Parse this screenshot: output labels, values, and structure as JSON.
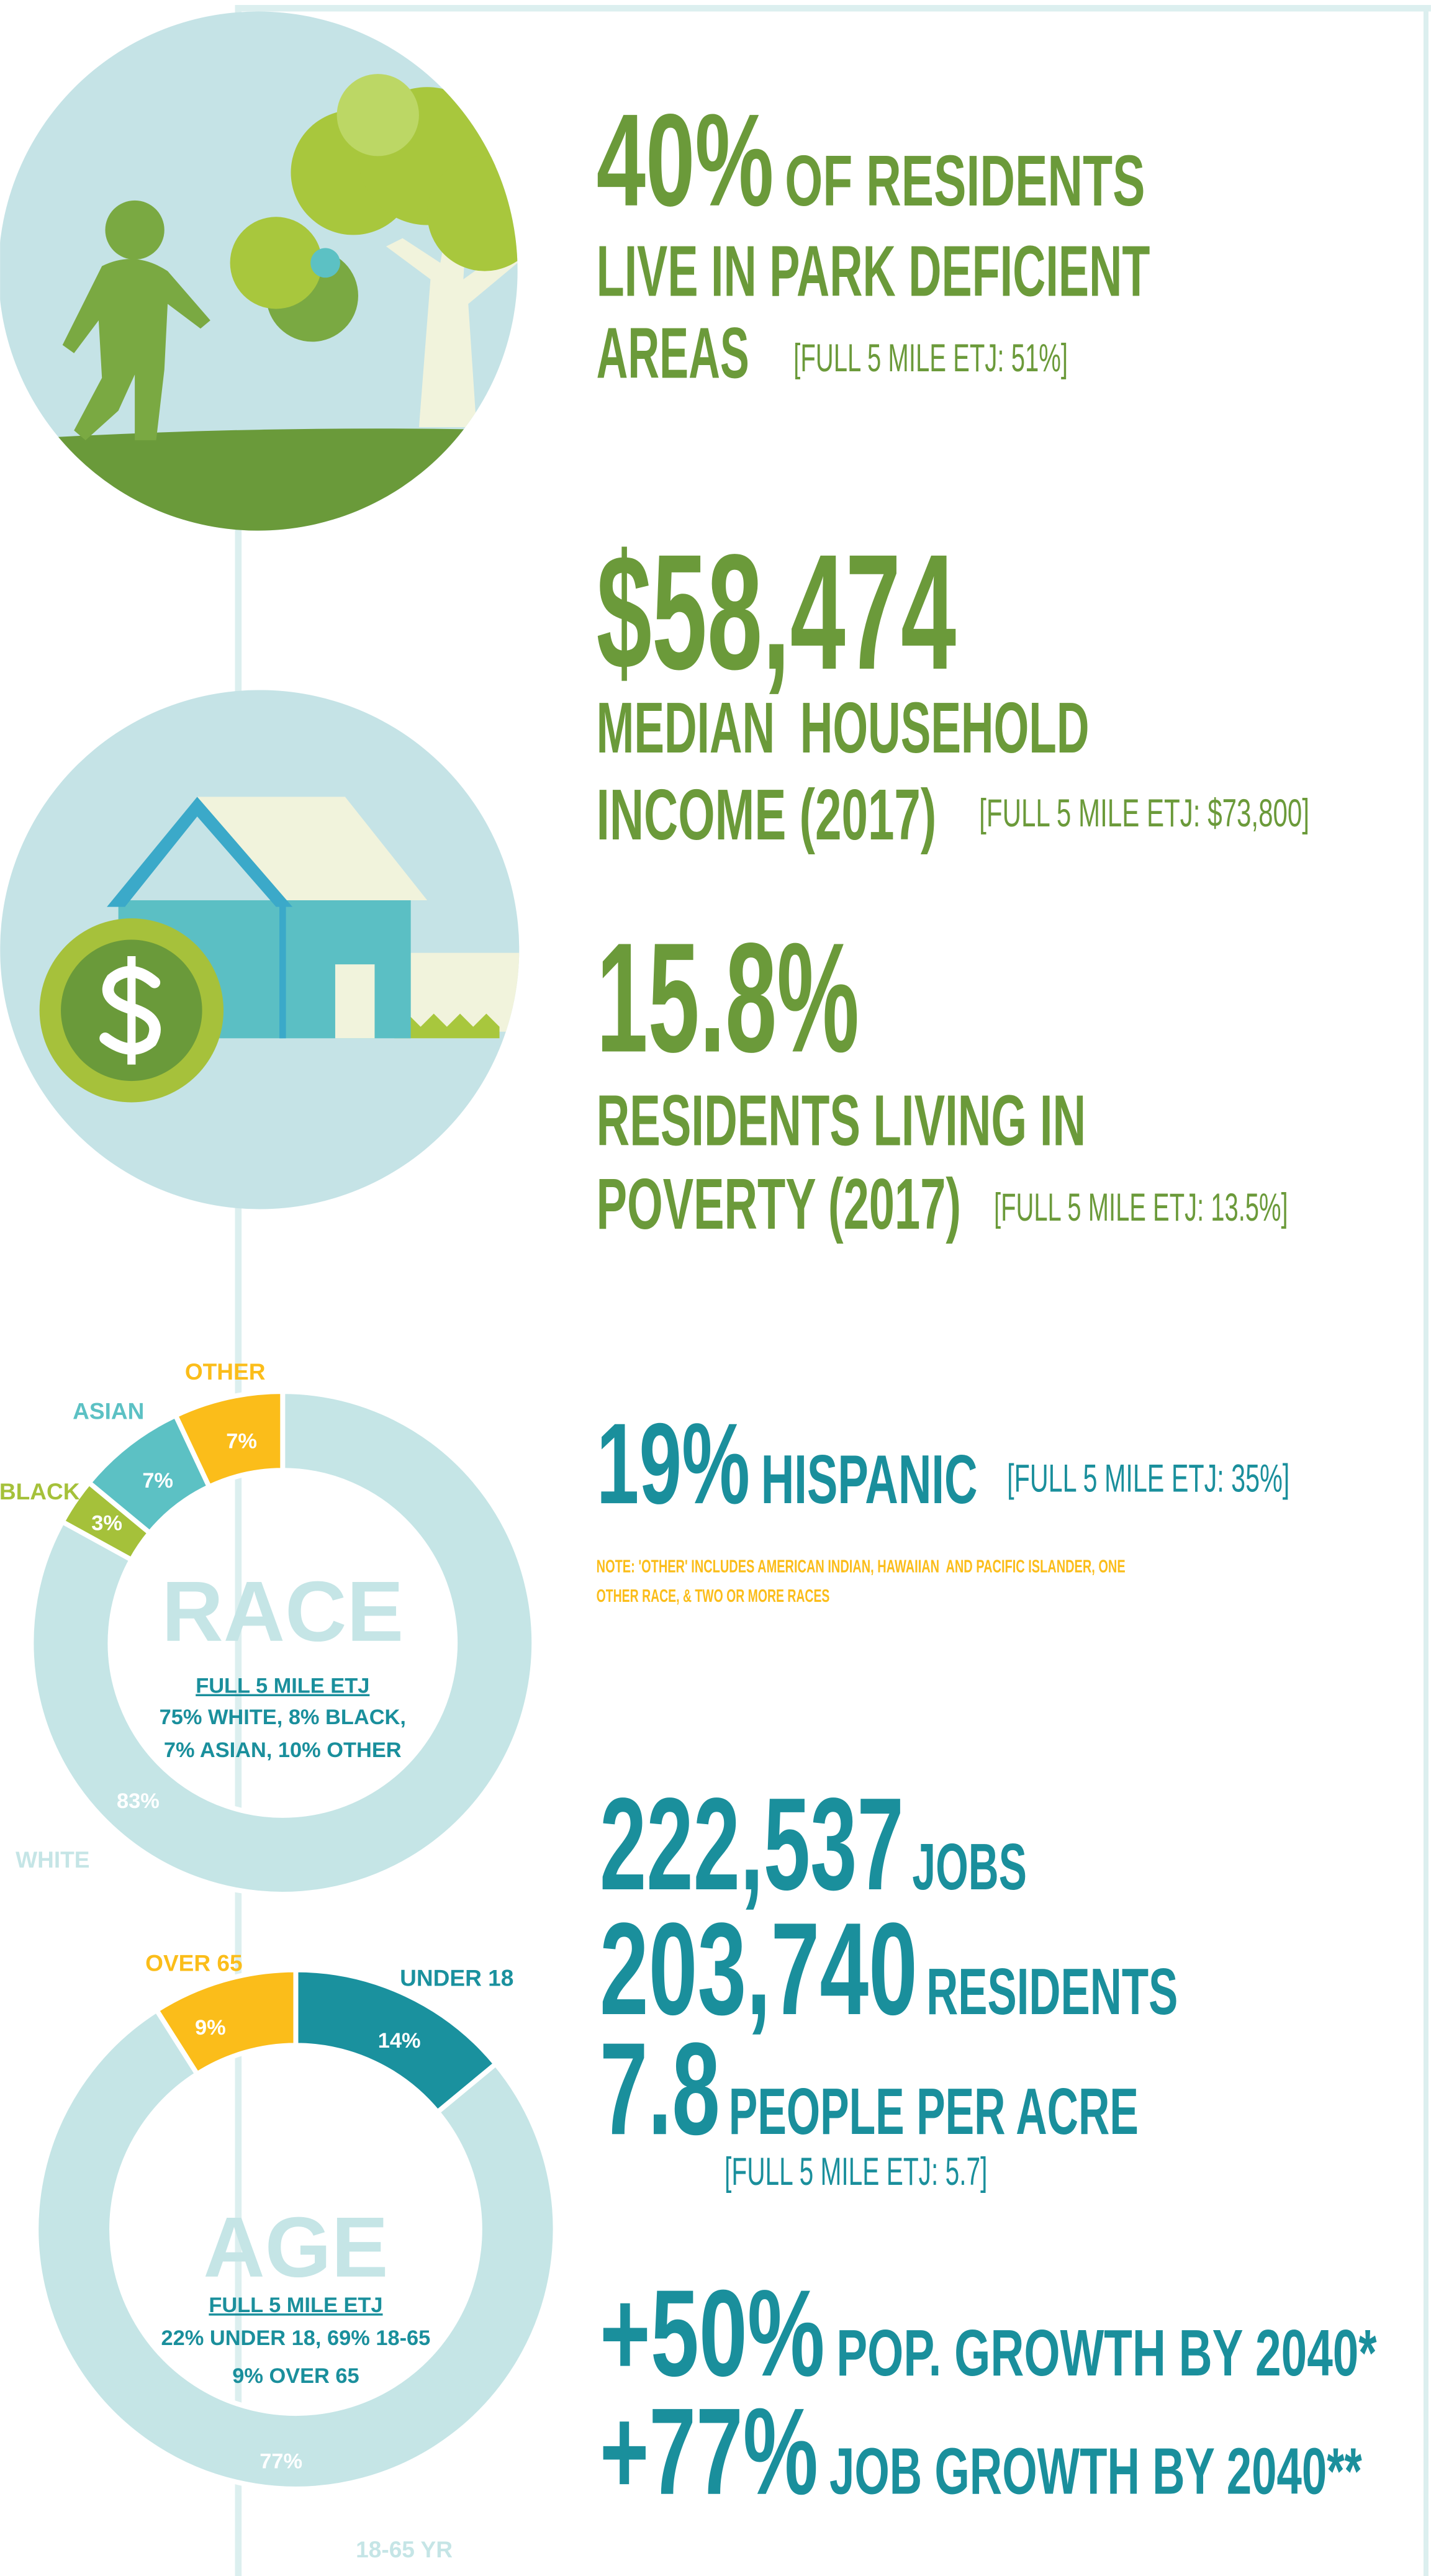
{
  "parks": {
    "headline": "40%",
    "headline_rest": "OF RESIDENTS",
    "line2": "LIVE IN PARK DEFICIENT",
    "line3": "AREAS",
    "etj": "[FULL 5 MILE ETJ: 51%]"
  },
  "income": {
    "headline": "$58,474",
    "line2": "MEDIAN  HOUSEHOLD",
    "line3": "INCOME (2017)",
    "etj": "[FULL 5 MILE ETJ: $73,800]"
  },
  "poverty": {
    "headline": "15.8%",
    "line2": "RESIDENTS LIVING IN",
    "line3": "POVERTY (2017)",
    "etj": "[FULL 5 MILE ETJ: 13.5%]"
  },
  "hispanic": {
    "headline": "19%",
    "headline_rest": "HISPANIC",
    "etj": "[FULL 5 MILE ETJ: 35%]",
    "note": [
      "NOTE: 'OTHER' INCLUDES AMERICAN INDIAN, HAWAIIAN  AND PACIFIC ISLANDER, ONE",
      "OTHER RACE, & TWO OR MORE RACES"
    ]
  },
  "density": {
    "rows": [
      {
        "value": "222,537",
        "label": "JOBS"
      },
      {
        "value": "203,740",
        "label": "RESIDENTS"
      },
      {
        "value": "7.8",
        "label": "PEOPLE PER ACRE"
      }
    ],
    "etj": "[FULL 5 MILE ETJ: 5.7]"
  },
  "growth": [
    {
      "value": "+50%",
      "label": "POP. GROWTH BY 2040*"
    },
    {
      "value": "+77%",
      "label": "JOB GROWTH BY 2040**"
    }
  ],
  "chart_data": [
    {
      "type": "donut",
      "title": "RACE",
      "subtitle": "FULL 5 MILE ETJ",
      "annotation": [
        "75% WHITE, 8% BLACK,",
        "7% ASIAN, 10% OTHER"
      ],
      "categories": [
        "WHITE",
        "BLACK",
        "ASIAN",
        "OTHER"
      ],
      "values": [
        83,
        3,
        7,
        7
      ],
      "value_labels": [
        "83%",
        "3%",
        "7%",
        "7%"
      ],
      "colors": [
        "#c5e5e6",
        "#a5c13a",
        "#5cc1c4",
        "#fbbd1a"
      ]
    },
    {
      "type": "donut",
      "title": "AGE",
      "subtitle": "FULL 5 MILE ETJ",
      "annotation": [
        "22% UNDER 18, 69% 18-65",
        "9% OVER 65"
      ],
      "categories": [
        "UNDER 18",
        "18-65 YR",
        "OVER 65"
      ],
      "values": [
        14,
        77,
        9
      ],
      "value_labels": [
        "14%",
        "77%",
        "9%"
      ],
      "colors": [
        "#1a919e",
        "#c5e5e6",
        "#fbbd1a"
      ]
    }
  ]
}
